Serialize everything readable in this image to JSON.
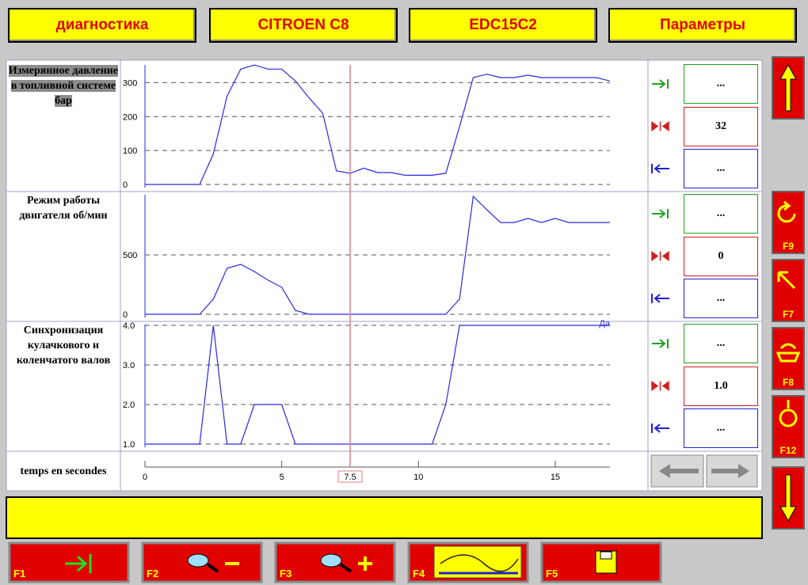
{
  "header": {
    "tabs": [
      "диагностика",
      "CITROEN C8",
      "EDC15C2",
      "Параметры"
    ]
  },
  "chart_data": [
    {
      "type": "line",
      "title": "Измерянное давление в топливной системе бар",
      "x": [
        0,
        0.5,
        1,
        1.5,
        2,
        2.5,
        3,
        3.5,
        4,
        4.5,
        5,
        5.5,
        6,
        6.5,
        7,
        7.5,
        8,
        8.5,
        9,
        9.5,
        10,
        10.5,
        11,
        11.5,
        12,
        12.5,
        13,
        13.5,
        14,
        14.5,
        15,
        15.5,
        16,
        16.5,
        17
      ],
      "values": [
        0,
        0,
        0,
        0,
        0,
        90,
        260,
        340,
        352,
        340,
        340,
        305,
        255,
        210,
        40,
        33,
        48,
        35,
        35,
        27,
        27,
        27,
        33,
        170,
        315,
        325,
        315,
        315,
        322,
        315,
        315,
        315,
        315,
        315,
        305
      ],
      "color": "#2a2ae0",
      "xlim": [
        0,
        17
      ],
      "ylim": [
        0,
        350
      ],
      "yticks": [
        0,
        100,
        200,
        300
      ],
      "grid": true
    },
    {
      "type": "line",
      "title": "Режим работы двигателя об/мин",
      "x": [
        0,
        0.5,
        1,
        1.5,
        2,
        2.5,
        3,
        3.5,
        4,
        4.5,
        5,
        5.5,
        6,
        6.5,
        7,
        7.5,
        8,
        8.5,
        9,
        9.5,
        10,
        10.5,
        11,
        11.5,
        12,
        12.5,
        13,
        13.5,
        14,
        14.5,
        15,
        15.5,
        16,
        16.5,
        17
      ],
      "values": [
        0,
        0,
        0,
        0,
        0,
        127,
        387,
        420,
        360,
        287,
        227,
        33,
        0,
        0,
        0,
        0,
        0,
        0,
        0,
        0,
        0,
        0,
        0,
        127,
        993,
        880,
        773,
        773,
        807,
        773,
        807,
        773,
        773,
        773,
        773
      ],
      "color": "#2a2ae0",
      "xlim": [
        0,
        17
      ],
      "ylim": [
        0,
        1000
      ],
      "yticks": [
        0,
        500
      ],
      "grid": true
    },
    {
      "type": "line",
      "title": "Синхронизация кулачкового и коленчатого валов",
      "x": [
        0,
        0.5,
        1,
        1.5,
        2,
        2.5,
        3,
        3.5,
        4,
        4.5,
        5,
        5.5,
        6,
        6.5,
        7,
        7.5,
        8,
        8.5,
        9,
        9.5,
        10,
        10.5,
        11,
        11.5,
        12,
        12.5,
        13,
        13.5,
        14,
        14.5,
        15,
        15.5,
        16,
        16.5,
        17
      ],
      "values": [
        1,
        1,
        1,
        1,
        1,
        4,
        1,
        1,
        2,
        2,
        2,
        1,
        1,
        1,
        1,
        1,
        1,
        1,
        1,
        1,
        1,
        1,
        2,
        4,
        4,
        4,
        4,
        4,
        4,
        4,
        4,
        4,
        4,
        4,
        4
      ],
      "color": "#2a2ae0",
      "xlim": [
        0,
        17
      ],
      "ylim": [
        1,
        4
      ],
      "yticks": [
        {
          "value": 1,
          "label": "1.0"
        },
        {
          "value": 2,
          "label": "2.0"
        },
        {
          "value": 3,
          "label": "3.0"
        },
        {
          "value": 4,
          "label": "4.0"
        }
      ],
      "grid": true,
      "annotation": "Да"
    }
  ],
  "readouts": [
    [
      "...",
      "32",
      "..."
    ],
    [
      "...",
      "0",
      "..."
    ],
    [
      "...",
      "1.0",
      "..."
    ]
  ],
  "time_axis": {
    "label": "temps en secondes",
    "xlim": [
      0,
      17
    ],
    "xticks": [
      0,
      5,
      10,
      15
    ],
    "cursor": 7.5
  },
  "side_keys": [
    "F9",
    "F7",
    "F8",
    "F12"
  ],
  "function_keys": [
    "F1",
    "F2",
    "F3",
    "F4",
    "F5"
  ]
}
